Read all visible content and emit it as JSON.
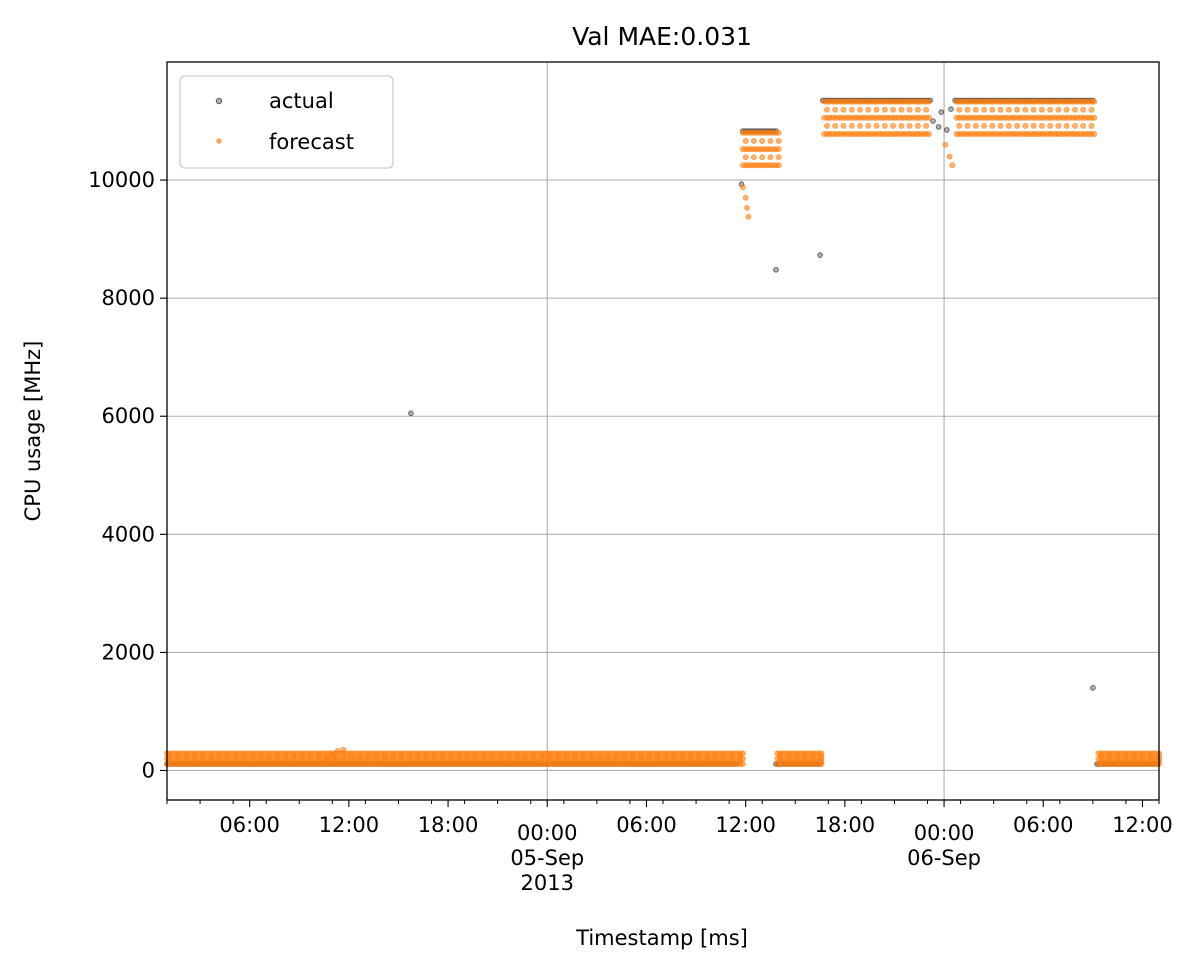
{
  "chart_data": {
    "type": "scatter",
    "title": "Val MAE:0.031",
    "xlabel": "Timestamp [ms]",
    "ylabel": "CPU usage [MHz]",
    "x_axis_type": "datetime",
    "xlim": [
      "2013-09-04T01:00",
      "2013-09-06T13:00"
    ],
    "ylim": [
      -500,
      12000
    ],
    "grid": true,
    "legend_position": "upper-left",
    "x_ticks": [
      {
        "at": "2013-09-04T06:00",
        "label": "06:00"
      },
      {
        "at": "2013-09-04T12:00",
        "label": "12:00"
      },
      {
        "at": "2013-09-04T18:00",
        "label": "18:00"
      },
      {
        "at": "2013-09-05T00:00",
        "label": "00:00",
        "label2": "05-Sep",
        "label3": "2013"
      },
      {
        "at": "2013-09-05T06:00",
        "label": "06:00"
      },
      {
        "at": "2013-09-05T12:00",
        "label": "12:00"
      },
      {
        "at": "2013-09-05T18:00",
        "label": "18:00"
      },
      {
        "at": "2013-09-06T00:00",
        "label": "00:00",
        "label2": "06-Sep"
      },
      {
        "at": "2013-09-06T06:00",
        "label": "06:00"
      },
      {
        "at": "2013-09-06T12:00",
        "label": "12:00"
      }
    ],
    "y_ticks": [
      0,
      2000,
      4000,
      6000,
      8000,
      10000
    ],
    "series": [
      {
        "name": "actual",
        "color": "#000000",
        "alpha": 0.4,
        "segments": [
          {
            "start": "2013-09-04T01:00",
            "end": "2013-09-05T11:30",
            "value": 110
          },
          {
            "start": "2013-09-05T13:50",
            "end": "2013-09-05T16:30",
            "value": 110
          },
          {
            "start": "2013-09-06T09:15",
            "end": "2013-09-06T13:00",
            "value": 110
          },
          {
            "start": "2013-09-05T11:50",
            "end": "2013-09-05T13:50",
            "value": 10830
          },
          {
            "start": "2013-09-05T16:40",
            "end": "2013-09-05T23:10",
            "value": 11350
          },
          {
            "start": "2013-09-06T00:40",
            "end": "2013-09-06T09:00",
            "value": 11350
          }
        ],
        "points": [
          {
            "x": "2013-09-04T15:45",
            "y": 6050
          },
          {
            "x": "2013-09-05T11:45",
            "y": 9930
          },
          {
            "x": "2013-09-05T13:50",
            "y": 8480
          },
          {
            "x": "2013-09-05T16:30",
            "y": 8730
          },
          {
            "x": "2013-09-05T23:20",
            "y": 11000
          },
          {
            "x": "2013-09-05T23:40",
            "y": 10900
          },
          {
            "x": "2013-09-05T23:50",
            "y": 11150
          },
          {
            "x": "2013-09-06T00:10",
            "y": 10850
          },
          {
            "x": "2013-09-06T00:25",
            "y": 11200
          },
          {
            "x": "2013-09-06T09:00",
            "y": 1400
          }
        ]
      },
      {
        "name": "forecast",
        "color": "#ff7f0e",
        "alpha": 0.6,
        "bands": [
          {
            "start": "2013-09-04T01:00",
            "end": "2013-09-05T11:50",
            "top": 290,
            "bottom": 110
          },
          {
            "start": "2013-09-05T13:55",
            "end": "2013-09-05T16:40",
            "top": 290,
            "bottom": 110
          },
          {
            "start": "2013-09-06T09:20",
            "end": "2013-09-06T13:00",
            "top": 290,
            "bottom": 110
          },
          {
            "start": "2013-09-05T11:50",
            "end": "2013-09-05T14:00",
            "top": 10800,
            "bottom": 10250
          },
          {
            "start": "2013-09-05T16:45",
            "end": "2013-09-05T23:10",
            "top": 11330,
            "bottom": 10780
          },
          {
            "start": "2013-09-06T00:45",
            "end": "2013-09-06T09:10",
            "top": 11330,
            "bottom": 10780
          }
        ],
        "points": [
          {
            "x": "2013-09-04T10:40",
            "y": 180
          },
          {
            "x": "2013-09-04T11:00",
            "y": 260
          },
          {
            "x": "2013-09-04T11:20",
            "y": 330
          },
          {
            "x": "2013-09-04T11:40",
            "y": 350
          },
          {
            "x": "2013-09-05T11:50",
            "y": 9880
          },
          {
            "x": "2013-09-05T12:00",
            "y": 9700
          },
          {
            "x": "2013-09-05T12:05",
            "y": 9530
          },
          {
            "x": "2013-09-05T12:10",
            "y": 9380
          },
          {
            "x": "2013-09-06T00:05",
            "y": 10600
          },
          {
            "x": "2013-09-06T00:20",
            "y": 10400
          },
          {
            "x": "2013-09-06T00:30",
            "y": 10250
          }
        ]
      }
    ]
  }
}
